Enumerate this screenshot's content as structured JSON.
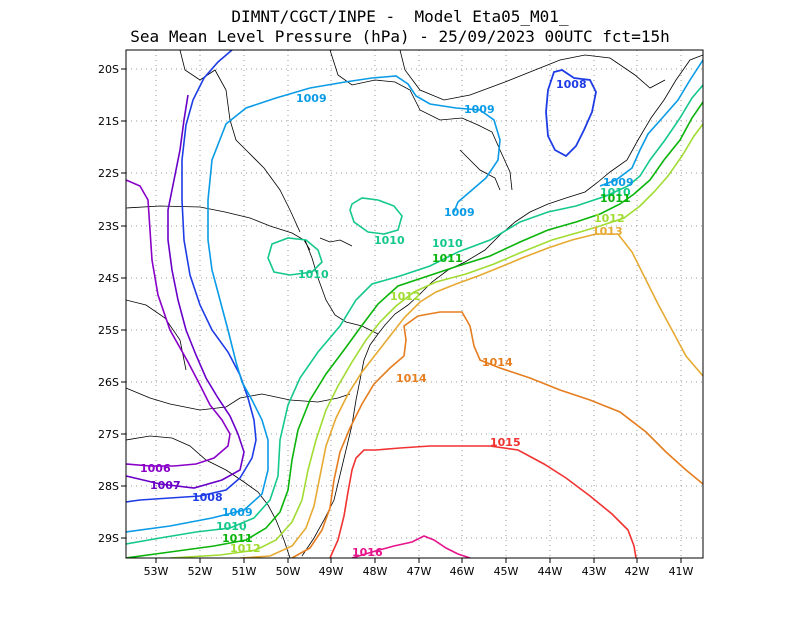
{
  "title": {
    "line1": "DIMNT/CGCT/INPE -  Model Eta05_M01_",
    "line2": "Sea Mean Level Pressure (hPa) - 25/09/2023 00UTC fct=15h"
  },
  "axes": {
    "lat_labels": [
      "20S",
      "21S",
      "22S",
      "23S",
      "24S",
      "25S",
      "26S",
      "27S",
      "28S",
      "29S"
    ],
    "lon_labels": [
      "53W",
      "52W",
      "51W",
      "50W",
      "49W",
      "48W",
      "47W",
      "46W",
      "45W",
      "44W",
      "43W",
      "42W",
      "41W"
    ]
  },
  "isobars": [
    {
      "value": 1006,
      "label": "1006",
      "color": "#8a00c8"
    },
    {
      "value": 1007,
      "label": "1007",
      "color": "#6a00c8"
    },
    {
      "value": 1008,
      "label": "1008",
      "color": "#1e3ce6"
    },
    {
      "value": 1009,
      "label": "1009",
      "color": "#0a9be6"
    },
    {
      "value": 1010,
      "label": "1010",
      "color": "#14c88c"
    },
    {
      "value": 1011,
      "label": "1011",
      "color": "#0ab40a"
    },
    {
      "value": 1012,
      "label": "1012",
      "color": "#a0dc32"
    },
    {
      "value": 1013,
      "label": "1013",
      "color": "#e6aa32"
    },
    {
      "value": 1014,
      "label": "1014",
      "color": "#e67d1e"
    },
    {
      "value": 1015,
      "label": "1015",
      "color": "#f03232"
    },
    {
      "value": 1016,
      "label": "1016",
      "color": "#e6148c"
    }
  ]
}
